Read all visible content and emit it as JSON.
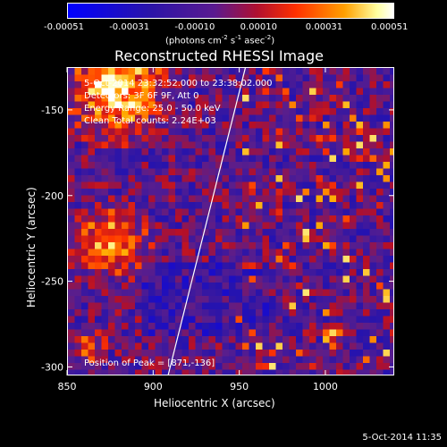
{
  "colorbar": {
    "ticks": [
      "-0.00051",
      "-0.00031",
      "-0.00010",
      "0.00010",
      "0.00031",
      "0.00051"
    ],
    "units_label": "(photons cm-2 s-1 asec-2)"
  },
  "chart_data": {
    "type": "heatmap",
    "title": "Reconstructed RHESSI Image",
    "xlabel": "Heliocentric X (arcsec)",
    "ylabel": "Heliocentric Y (arcsec)",
    "xlim": [
      850,
      1040
    ],
    "ylim": [
      -305,
      -125
    ],
    "x_ticks": [
      850,
      900,
      950,
      1000
    ],
    "y_ticks": [
      -150,
      -200,
      -250,
      -300
    ],
    "x_tick_labels": [
      "850",
      "900",
      "950",
      "1000"
    ],
    "y_tick_labels": [
      "-150",
      "-200",
      "-250",
      "-300"
    ],
    "color_range": [
      -0.00051,
      0.00051
    ],
    "limb_line": [
      [
        908,
        -305
      ],
      [
        953,
        -125
      ]
    ],
    "annotations": [
      "5-Oct-2014 23:32:52.000 to 23:38:02.000",
      "Detectors: 3F 6F 9F, Att 0",
      "Energy Range: 25.0 - 50.0 keV",
      "Clean     Total counts: 2.24E+03",
      "Position of Peak = [871,-136]"
    ]
  },
  "footer": {
    "timestamp": "5-Oct-2014 11:35"
  }
}
